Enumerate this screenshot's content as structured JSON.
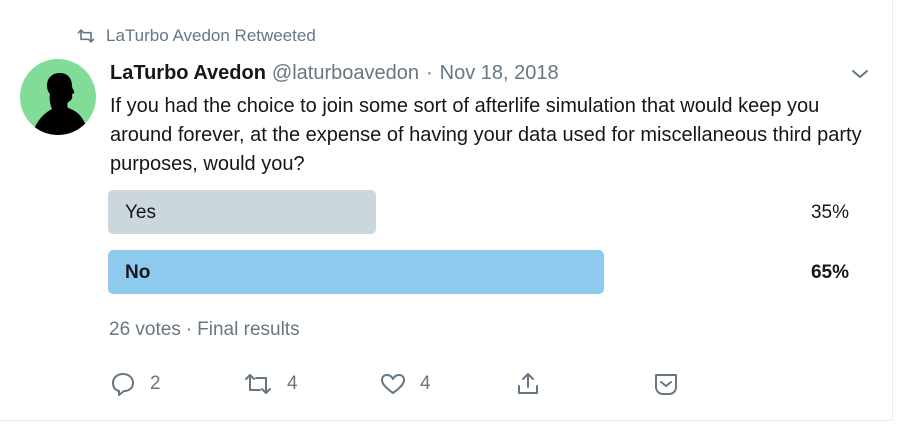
{
  "context": {
    "retweeted_by": "LaTurbo Avedon Retweeted"
  },
  "tweet": {
    "author_name": "LaTurbo Avedon",
    "handle": "@laturboavedon",
    "separator": "·",
    "date": "Nov 18, 2018",
    "text": "If you had the choice to join some sort of afterlife simulation that would keep you around forever, at the expense of having your data used for miscellaneous third party purposes, would you?"
  },
  "poll": {
    "options": [
      {
        "label": "Yes",
        "percent_text": "35%",
        "percent": 35,
        "color": "#ccd6dd",
        "winner": false
      },
      {
        "label": "No",
        "percent_text": "65%",
        "percent": 65,
        "color": "#8ec9ee",
        "winner": true
      }
    ],
    "votes": "26 votes",
    "separator": "·",
    "status": "Final results"
  },
  "actions": {
    "replies": "2",
    "retweets": "4",
    "likes": "4"
  },
  "icons": {
    "context": "retweet-icon",
    "menu": "chevron-down-icon",
    "reply": "reply-icon",
    "retweet": "retweet-icon",
    "like": "heart-icon",
    "share": "share-icon",
    "dm": "direct-message-icon"
  },
  "colors": {
    "avatar_bg": "#80dc96",
    "secondary_text": "#657786",
    "primary_text": "#14171a"
  }
}
